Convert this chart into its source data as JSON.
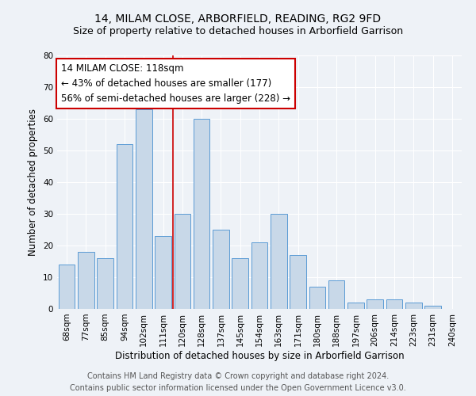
{
  "title": "14, MILAM CLOSE, ARBORFIELD, READING, RG2 9FD",
  "subtitle": "Size of property relative to detached houses in Arborfield Garrison",
  "xlabel": "Distribution of detached houses by size in Arborfield Garrison",
  "ylabel": "Number of detached properties",
  "categories": [
    "68sqm",
    "77sqm",
    "85sqm",
    "94sqm",
    "102sqm",
    "111sqm",
    "120sqm",
    "128sqm",
    "137sqm",
    "145sqm",
    "154sqm",
    "163sqm",
    "171sqm",
    "180sqm",
    "188sqm",
    "197sqm",
    "206sqm",
    "214sqm",
    "223sqm",
    "231sqm",
    "240sqm"
  ],
  "values": [
    14,
    18,
    16,
    52,
    63,
    23,
    30,
    60,
    25,
    16,
    21,
    30,
    17,
    7,
    9,
    2,
    3,
    3,
    2,
    1,
    0
  ],
  "bar_color": "#c8d8e8",
  "bar_edge_color": "#5b9bd5",
  "annotation_text": "14 MILAM CLOSE: 118sqm\n← 43% of detached houses are smaller (177)\n56% of semi-detached houses are larger (228) →",
  "annotation_box_color": "#ffffff",
  "annotation_box_edge": "#cc0000",
  "vline_index": 5,
  "vline_color": "#cc0000",
  "ylim": [
    0,
    80
  ],
  "yticks": [
    0,
    10,
    20,
    30,
    40,
    50,
    60,
    70,
    80
  ],
  "footer_line1": "Contains HM Land Registry data © Crown copyright and database right 2024.",
  "footer_line2": "Contains public sector information licensed under the Open Government Licence v3.0.",
  "background_color": "#eef2f7",
  "grid_color": "#ffffff",
  "title_fontsize": 10,
  "subtitle_fontsize": 9,
  "axis_label_fontsize": 8.5,
  "tick_fontsize": 7.5,
  "annotation_fontsize": 8.5,
  "footer_fontsize": 7
}
